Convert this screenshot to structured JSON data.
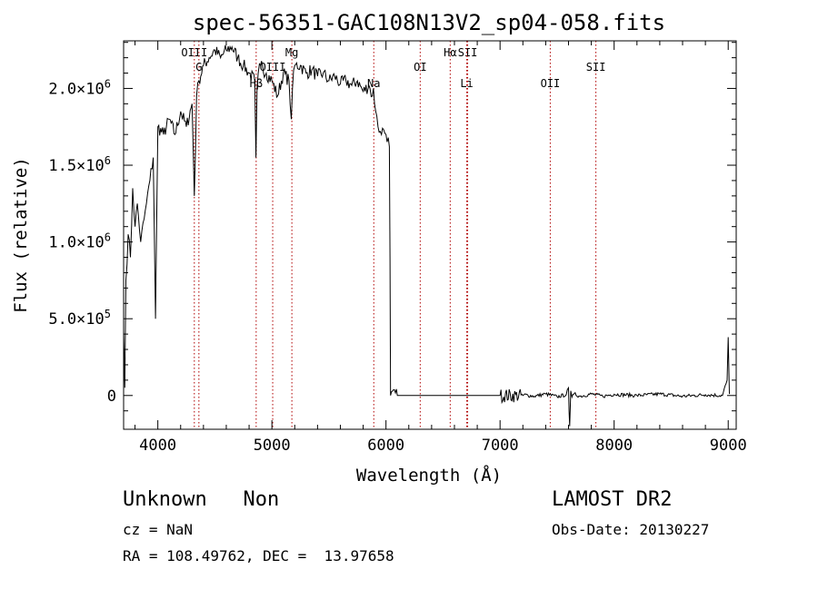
{
  "chart_data": {
    "type": "line",
    "title": "spec-56351-GAC108N13V2_sp04-058.fits",
    "xlabel": "Wavelength (Å)",
    "ylabel": "Flux (relative)",
    "xlim": [
      3700,
      9070
    ],
    "ylim": [
      -220000,
      2310000
    ],
    "x_ticks": [
      {
        "value": 4000,
        "label": "4000"
      },
      {
        "value": 5000,
        "label": "5000"
      },
      {
        "value": 6000,
        "label": "6000"
      },
      {
        "value": 7000,
        "label": "7000"
      },
      {
        "value": 8000,
        "label": "8000"
      },
      {
        "value": 9000,
        "label": "9000"
      }
    ],
    "y_ticks": [
      {
        "value": 0,
        "label": "0"
      },
      {
        "value": 500000,
        "mant": "5.0",
        "exp": "5"
      },
      {
        "value": 1000000,
        "mant": "1.0",
        "exp": "6"
      },
      {
        "value": 1500000,
        "mant": "1.5",
        "exp": "6"
      },
      {
        "value": 2000000,
        "mant": "2.0",
        "exp": "6"
      }
    ],
    "lines": [
      {
        "label": "OIII",
        "wave": 4320,
        "label_row": 0
      },
      {
        "label": "G",
        "wave": 4360,
        "label_row": 1
      },
      {
        "label": "Hβ",
        "wave": 4862,
        "label_row": 3
      },
      {
        "label": "OIII",
        "wave": 5007,
        "label_row": 1
      },
      {
        "label": "Mg",
        "wave": 5175,
        "label_row": 0
      },
      {
        "label": "Na",
        "wave": 5893,
        "label_row": 3
      },
      {
        "label": "OI",
        "wave": 6300,
        "label_row": 1
      },
      {
        "label": "Hα",
        "wave": 6563,
        "label_row": 0
      },
      {
        "label": "SII",
        "wave": 6716,
        "label_row": 0
      },
      {
        "label": "Li",
        "wave": 6708,
        "label_row": 2
      },
      {
        "label": "OII",
        "wave": 7440,
        "label_row": 2
      },
      {
        "label": "SII",
        "wave": 7840,
        "label_row": 1
      }
    ],
    "series": [
      {
        "x": [
          3700,
          3710,
          3720,
          3740,
          3760,
          3780,
          3800,
          3820,
          3850,
          3880,
          3900,
          3930,
          3960,
          3980,
          4000,
          4050,
          4100,
          4150,
          4200,
          4250,
          4300,
          4320,
          4340,
          4360,
          4400,
          4450,
          4500,
          4550,
          4600,
          4650,
          4700,
          4750,
          4800,
          4850,
          4860,
          4870,
          4880,
          4900,
          4950,
          5000,
          5050,
          5100,
          5150,
          5170,
          5180,
          5200,
          5250,
          5300,
          5350,
          5400,
          5450,
          5500,
          5550,
          5600,
          5650,
          5700,
          5750,
          5800,
          5850,
          5880,
          5890,
          5900,
          5910,
          5930,
          5950,
          5980,
          6000,
          6020,
          6030,
          6035,
          6040,
          6100,
          6500,
          7000,
          7200,
          7210,
          7300,
          7400,
          7500,
          7580,
          7600,
          7605,
          7610,
          7620,
          7630,
          7650,
          7700,
          7800,
          7900,
          8000,
          8200,
          8400,
          8600,
          8800,
          8950,
          8990,
          9000,
          9010
        ],
        "y": [
          420000,
          50000,
          750000,
          1050000,
          900000,
          1350000,
          1100000,
          1250000,
          1000000,
          1150000,
          1250000,
          1400000,
          1550000,
          500000,
          1750000,
          1700000,
          1800000,
          1700000,
          1850000,
          1750000,
          1900000,
          1300000,
          1950000,
          2050000,
          2150000,
          2200000,
          2250000,
          2200000,
          2250000,
          2270000,
          2200000,
          2150000,
          2100000,
          2050000,
          1550000,
          2000000,
          2100000,
          2150000,
          2100000,
          2050000,
          1950000,
          2100000,
          2050000,
          1800000,
          2000000,
          2150000,
          2150000,
          2100000,
          2120000,
          2080000,
          2100000,
          2050000,
          2080000,
          2030000,
          2050000,
          2020000,
          2050000,
          1980000,
          2020000,
          1950000,
          2000000,
          1900000,
          1850000,
          1750000,
          1720000,
          1730000,
          1700000,
          1680000,
          1620000,
          900000,
          0,
          0,
          0,
          0,
          0,
          5000,
          -5000,
          10000,
          -8000,
          5000,
          50000,
          -100000,
          -200000,
          30000,
          -10000,
          10000,
          -5000,
          10000,
          -5000,
          8000,
          0,
          10000,
          -5000,
          5000,
          0,
          100000,
          380000,
          10000
        ]
      }
    ]
  },
  "info": {
    "left_line1": "Unknown   Non",
    "left_line2": "cz = NaN",
    "left_line3": "RA = 108.49762, DEC =  13.97658",
    "right_line1": "LAMOST DR2",
    "right_line2": "Obs-Date: 20130227"
  }
}
